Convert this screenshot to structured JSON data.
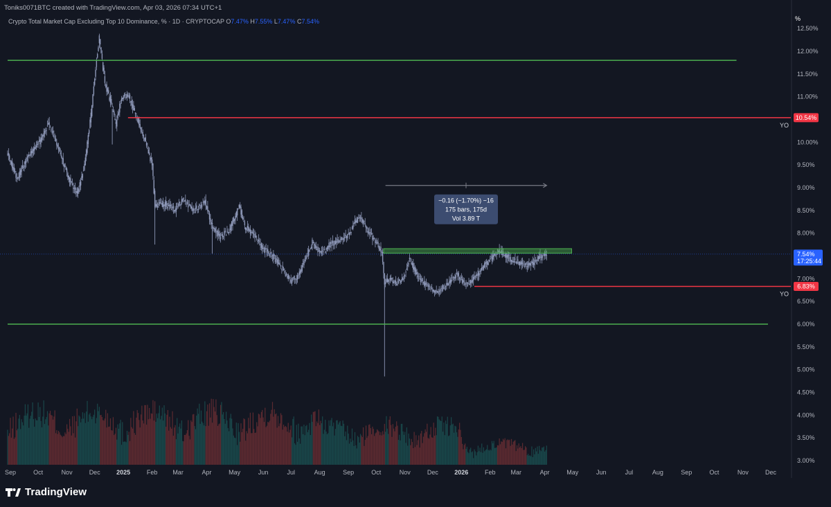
{
  "header": {
    "attribution": "Toniks0071BTC created with TradingView.com, Apr 03, 2026 07:34 UTC+1",
    "symbol_title": "Crypto Total Market Cap Excluding Top 10 Dominance, % · 1D · CRYPTOCAP",
    "ohlc": [
      {
        "key": "O",
        "value": "7.47%"
      },
      {
        "key": "H",
        "value": "7.55%"
      },
      {
        "key": "L",
        "value": "7.47%"
      },
      {
        "key": "C",
        "value": "7.54%"
      }
    ],
    "unit_label": "%"
  },
  "brand": {
    "name": "TradingView",
    "logo_icon": "tradingview-logo-icon"
  },
  "colors": {
    "background": "#131722",
    "candle": "#8e98b8",
    "green_line": "#4caf50",
    "red_line": "#f23645",
    "price_badge": "#2962ff",
    "volume_up": "#26a69a",
    "volume_down": "#ef5350",
    "measure_bg": "#3c4c70"
  },
  "chart_data": {
    "type": "candlestick",
    "title": "Crypto Total Market Cap Excluding Top 10 Dominance, %",
    "timeframe": "1D",
    "y_axis": {
      "ticks": [
        "12.50%",
        "12.00%",
        "11.50%",
        "11.00%",
        "10.50%",
        "10.00%",
        "9.50%",
        "9.00%",
        "8.50%",
        "8.00%",
        "7.50%",
        "7.00%",
        "6.50%",
        "6.00%",
        "5.50%",
        "5.00%",
        "4.50%",
        "4.00%",
        "3.50%",
        "3.00%"
      ],
      "values": [
        12.5,
        12.0,
        11.5,
        11.0,
        10.5,
        10.0,
        9.5,
        9.0,
        8.5,
        8.0,
        7.5,
        7.0,
        6.5,
        6.0,
        5.5,
        5.0,
        4.5,
        4.0,
        3.5,
        3.0
      ],
      "position": "right",
      "scale": "linear"
    },
    "x_axis": {
      "ticks": [
        "Sep",
        "Oct",
        "Nov",
        "Dec",
        "2025",
        "Feb",
        "Mar",
        "Apr",
        "May",
        "Jun",
        "Jul",
        "Aug",
        "Sep",
        "Oct",
        "Nov",
        "Dec",
        "2026",
        "Feb",
        "Mar",
        "Apr",
        "May",
        "Jun",
        "Jul",
        "Aug",
        "Sep",
        "Oct",
        "Nov",
        "Dec"
      ],
      "dates": [
        "2024-09-01",
        "2024-10-01",
        "2024-11-01",
        "2024-12-01",
        "2025-01-01",
        "2025-02-01",
        "2025-03-01",
        "2025-04-01",
        "2025-05-01",
        "2025-06-01",
        "2025-07-01",
        "2025-08-01",
        "2025-09-01",
        "2025-10-01",
        "2025-11-01",
        "2025-12-01",
        "2026-01-01",
        "2026-02-01",
        "2026-03-01",
        "2026-04-01",
        "2026-05-01",
        "2026-06-01",
        "2026-07-01",
        "2026-08-01",
        "2026-09-01",
        "2026-10-01",
        "2026-11-01",
        "2026-12-01"
      ],
      "bold": [
        "2025",
        "2026"
      ]
    },
    "price_path": [
      [
        "2024-08-29",
        9.75
      ],
      [
        "2024-09-08",
        9.2
      ],
      [
        "2024-09-20",
        9.7
      ],
      [
        "2024-10-02",
        10.0
      ],
      [
        "2024-10-12",
        10.4
      ],
      [
        "2024-10-22",
        9.9
      ],
      [
        "2024-11-03",
        9.2
      ],
      [
        "2024-11-12",
        8.85
      ],
      [
        "2024-11-20",
        9.5
      ],
      [
        "2024-11-27",
        10.6
      ],
      [
        "2024-12-03",
        11.8
      ],
      [
        "2024-12-06",
        12.3
      ],
      [
        "2024-12-12",
        11.3
      ],
      [
        "2024-12-18",
        10.9
      ],
      [
        "2024-12-24",
        10.4
      ],
      [
        "2024-12-30",
        11.0
      ],
      [
        "2025-01-06",
        11.05
      ],
      [
        "2025-01-14",
        10.6
      ],
      [
        "2025-01-24",
        10.05
      ],
      [
        "2025-02-01",
        9.5
      ],
      [
        "2025-02-04",
        8.6
      ],
      [
        "2025-02-15",
        8.65
      ],
      [
        "2025-02-26",
        8.5
      ],
      [
        "2025-03-06",
        8.75
      ],
      [
        "2025-03-18",
        8.5
      ],
      [
        "2025-03-30",
        8.7
      ],
      [
        "2025-04-06",
        8.2
      ],
      [
        "2025-04-16",
        7.9
      ],
      [
        "2025-04-26",
        8.1
      ],
      [
        "2025-05-06",
        8.6
      ],
      [
        "2025-05-12",
        8.15
      ],
      [
        "2025-05-22",
        7.95
      ],
      [
        "2025-06-01",
        7.65
      ],
      [
        "2025-06-11",
        7.5
      ],
      [
        "2025-06-22",
        7.2
      ],
      [
        "2025-07-01",
        6.95
      ],
      [
        "2025-07-08",
        7.05
      ],
      [
        "2025-07-15",
        7.35
      ],
      [
        "2025-07-24",
        7.8
      ],
      [
        "2025-08-02",
        7.55
      ],
      [
        "2025-08-12",
        7.75
      ],
      [
        "2025-08-22",
        7.85
      ],
      [
        "2025-09-01",
        7.95
      ],
      [
        "2025-09-08",
        8.25
      ],
      [
        "2025-09-14",
        8.35
      ],
      [
        "2025-09-22",
        8.05
      ],
      [
        "2025-10-01",
        7.8
      ],
      [
        "2025-10-07",
        7.6
      ],
      [
        "2025-10-10",
        6.9
      ],
      [
        "2025-10-14",
        7.0
      ],
      [
        "2025-10-24",
        6.9
      ],
      [
        "2025-10-31",
        7.05
      ],
      [
        "2025-11-06",
        7.45
      ],
      [
        "2025-11-14",
        7.05
      ],
      [
        "2025-11-24",
        6.85
      ],
      [
        "2025-12-04",
        6.7
      ],
      [
        "2025-12-12",
        6.8
      ],
      [
        "2025-12-20",
        6.95
      ],
      [
        "2025-12-28",
        7.1
      ],
      [
        "2026-01-05",
        6.85
      ],
      [
        "2026-01-12",
        6.95
      ],
      [
        "2026-01-22",
        7.2
      ],
      [
        "2026-01-31",
        7.4
      ],
      [
        "2026-02-08",
        7.6
      ],
      [
        "2026-02-16",
        7.55
      ],
      [
        "2026-02-24",
        7.4
      ],
      [
        "2026-03-04",
        7.35
      ],
      [
        "2026-03-12",
        7.3
      ],
      [
        "2026-03-20",
        7.35
      ],
      [
        "2026-03-27",
        7.5
      ],
      [
        "2026-04-03",
        7.54
      ]
    ],
    "spikes": [
      {
        "date": "2025-10-10",
        "low": 4.85
      },
      {
        "date": "2025-02-04",
        "low": 7.75
      },
      {
        "date": "2024-12-20",
        "low": 9.95
      },
      {
        "date": "2025-04-07",
        "low": 7.55
      }
    ],
    "horizontal_lines": [
      {
        "price": 11.8,
        "color": "green",
        "from": "2024-08-29",
        "to": "2026-10-25"
      },
      {
        "price": 10.54,
        "color": "red",
        "from": "2025-01-06",
        "to": "2026-12-31",
        "label": "10.54%",
        "tag": "YO"
      },
      {
        "price": 6.83,
        "color": "red",
        "from": "2026-01-15",
        "to": "2026-12-31",
        "label": "6.83%",
        "tag": "YO"
      },
      {
        "price": 6.0,
        "color": "green",
        "from": "2024-08-29",
        "to": "2026-11-28"
      }
    ],
    "zone": {
      "top": 7.66,
      "bottom": 7.56,
      "from": "2025-10-09",
      "to": "2026-04-30"
    },
    "last_price": {
      "value": "7.54%",
      "countdown": "17:25:44",
      "price": 7.54
    },
    "measure": {
      "from": "2025-10-11",
      "to": "2026-04-03",
      "price": 9.05,
      "line1": "−0.16 (−1.70%) −16",
      "line2": "175 bars, 175d",
      "line3": "Vol 3.89 T"
    }
  }
}
